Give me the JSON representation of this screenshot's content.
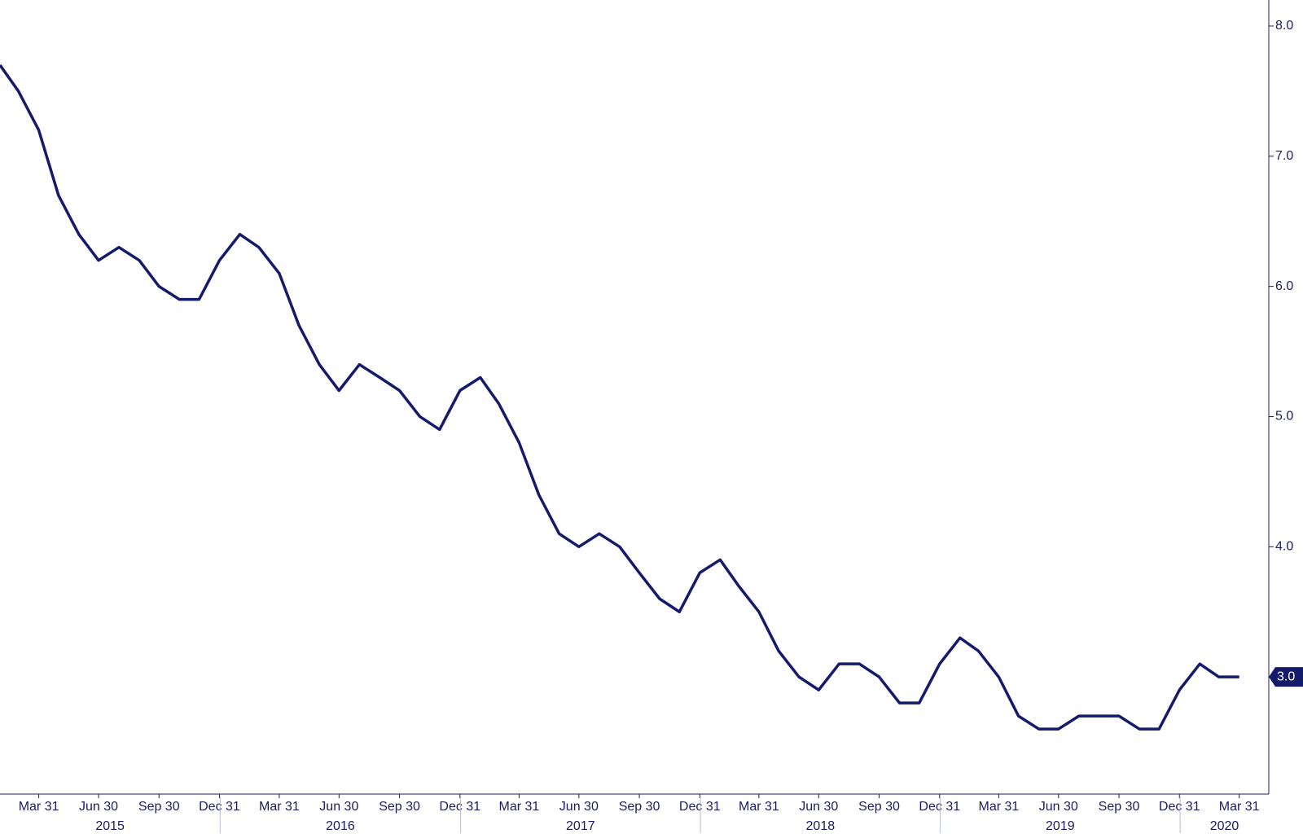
{
  "chart_data": {
    "type": "line",
    "x": [
      "2015-01-31",
      "2015-02-28",
      "2015-03-31",
      "2015-04-30",
      "2015-05-31",
      "2015-06-30",
      "2015-07-31",
      "2015-08-31",
      "2015-09-30",
      "2015-10-31",
      "2015-11-30",
      "2015-12-31",
      "2016-01-31",
      "2016-02-29",
      "2016-03-31",
      "2016-04-30",
      "2016-05-31",
      "2016-06-30",
      "2016-07-31",
      "2016-08-31",
      "2016-09-30",
      "2016-10-31",
      "2016-11-30",
      "2016-12-31",
      "2017-01-31",
      "2017-02-28",
      "2017-03-31",
      "2017-04-30",
      "2017-05-31",
      "2017-06-30",
      "2017-07-31",
      "2017-08-31",
      "2017-09-30",
      "2017-10-31",
      "2017-11-30",
      "2017-12-31",
      "2018-01-31",
      "2018-02-28",
      "2018-03-31",
      "2018-04-30",
      "2018-05-31",
      "2018-06-30",
      "2018-07-31",
      "2018-08-31",
      "2018-09-30",
      "2018-10-31",
      "2018-11-30",
      "2018-12-31",
      "2019-01-31",
      "2019-02-28",
      "2019-03-31",
      "2019-04-30",
      "2019-05-31",
      "2019-06-30",
      "2019-07-31",
      "2019-08-31",
      "2019-09-30",
      "2019-10-31",
      "2019-11-30",
      "2019-12-31",
      "2020-01-31",
      "2020-02-29",
      "2020-03-31"
    ],
    "series": [
      {
        "color": "#141b6b",
        "values": [
          7.7,
          7.5,
          7.2,
          6.7,
          6.4,
          6.2,
          6.3,
          6.2,
          6.0,
          5.9,
          5.9,
          6.2,
          6.4,
          6.3,
          6.1,
          5.7,
          5.4,
          5.2,
          5.4,
          5.3,
          5.2,
          5.0,
          4.9,
          5.2,
          5.3,
          5.1,
          4.8,
          4.4,
          4.1,
          4.0,
          4.1,
          4.0,
          3.8,
          3.6,
          3.5,
          3.8,
          3.9,
          3.7,
          3.5,
          3.2,
          3.0,
          2.9,
          3.1,
          3.1,
          3.0,
          2.8,
          2.8,
          3.1,
          3.3,
          3.2,
          3.0,
          2.7,
          2.6,
          2.6,
          2.7,
          2.7,
          2.7,
          2.6,
          2.6,
          2.9,
          3.1,
          3.0,
          3.0
        ]
      }
    ],
    "last_value": {
      "value": 3.0,
      "label": "3.0"
    },
    "xlim": [
      "2015-01-31",
      "2020-05-15"
    ],
    "xticks": [
      {
        "value": "2015-03-31",
        "label": "Mar 31"
      },
      {
        "value": "2015-06-30",
        "label": "Jun 30"
      },
      {
        "value": "2015-09-30",
        "label": "Sep 30"
      },
      {
        "value": "2015-12-31",
        "label": "Dec 31"
      },
      {
        "value": "2016-03-31",
        "label": "Mar 31"
      },
      {
        "value": "2016-06-30",
        "label": "Jun 30"
      },
      {
        "value": "2016-09-30",
        "label": "Sep 30"
      },
      {
        "value": "2016-12-31",
        "label": "Dec 31"
      },
      {
        "value": "2017-03-31",
        "label": "Mar 31"
      },
      {
        "value": "2017-06-30",
        "label": "Jun 30"
      },
      {
        "value": "2017-09-30",
        "label": "Sep 30"
      },
      {
        "value": "2017-12-31",
        "label": "Dec 31"
      },
      {
        "value": "2018-03-31",
        "label": "Mar 31"
      },
      {
        "value": "2018-06-30",
        "label": "Jun 30"
      },
      {
        "value": "2018-09-30",
        "label": "Sep 30"
      },
      {
        "value": "2018-12-31",
        "label": "Dec 31"
      },
      {
        "value": "2019-03-31",
        "label": "Mar 31"
      },
      {
        "value": "2019-06-30",
        "label": "Jun 30"
      },
      {
        "value": "2019-09-30",
        "label": "Sep 30"
      },
      {
        "value": "2019-12-31",
        "label": "Dec 31"
      },
      {
        "value": "2020-03-31",
        "label": "Mar 31"
      }
    ],
    "years": [
      "2015",
      "2016",
      "2017",
      "2018",
      "2019",
      "2020"
    ],
    "ylim": [
      2.1,
      8.2
    ],
    "yticks": [
      {
        "value": 4,
        "label": "4.0"
      },
      {
        "value": 5,
        "label": "5.0"
      },
      {
        "value": 6,
        "label": "6.0"
      },
      {
        "value": 7,
        "label": "7.0"
      },
      {
        "value": 8,
        "label": "8.0"
      }
    ]
  }
}
